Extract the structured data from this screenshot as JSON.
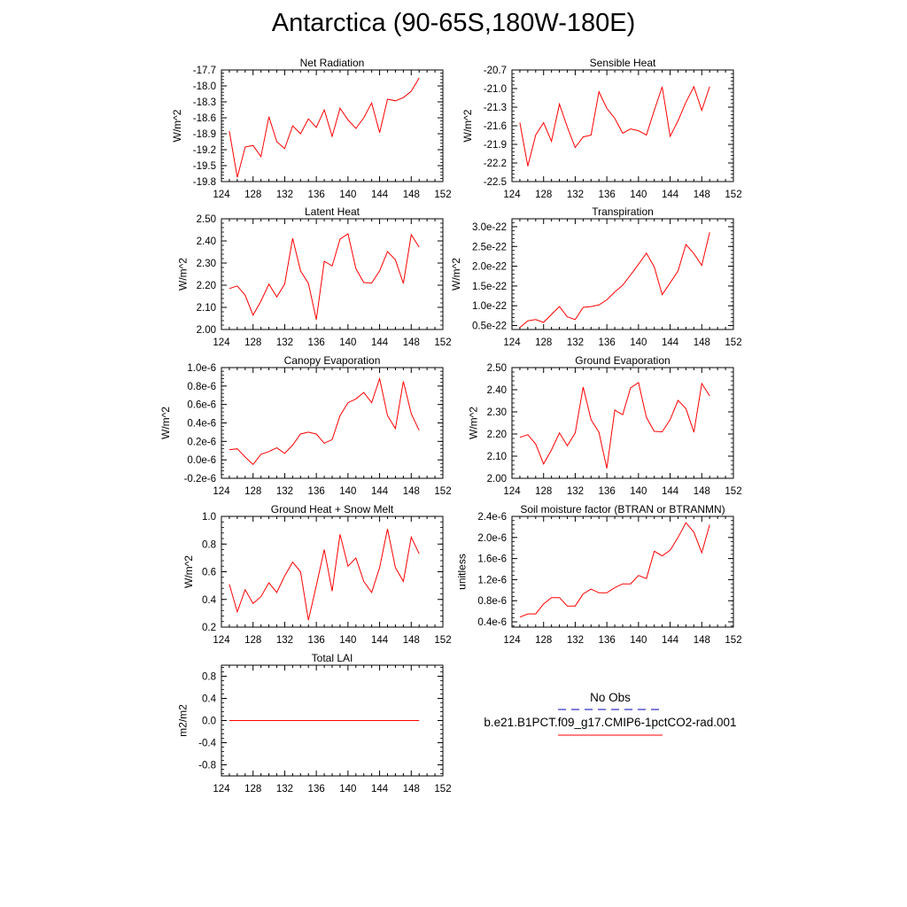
{
  "title": "Antarctica (90-65S,180W-180E)",
  "legend": {
    "entries": [
      {
        "label": "No Obs",
        "color": "#3333cc",
        "dash": true
      },
      {
        "label": "b.e21.B1PCT.f09_g17.CMIP6-1pctCO2-rad.001",
        "color": "#ff0000",
        "dash": false
      }
    ]
  },
  "chart_data": [
    {
      "type": "line",
      "title": "Net Radiation",
      "ylabel": "W/m^2",
      "xlim": [
        124,
        152
      ],
      "xticks": [
        "124",
        "128",
        "132",
        "136",
        "140",
        "144",
        "148",
        "152"
      ],
      "ylim": [
        -19.8,
        -17.7
      ],
      "yticks": [
        -17.7,
        -18.0,
        -18.3,
        -18.6,
        -18.9,
        -19.2,
        -19.5,
        -19.8
      ],
      "yticklabels": [
        "-17.7",
        "-18.0",
        "-18.3",
        "-18.6",
        "-18.9",
        "-19.2",
        "-19.5",
        "-19.8"
      ],
      "series": [
        {
          "color": "#ff0000",
          "x": [
            125,
            126,
            127,
            128,
            129,
            130,
            131,
            132,
            133,
            134,
            135,
            136,
            137,
            138,
            139,
            140,
            141,
            142,
            143,
            144,
            145,
            146,
            147,
            148,
            149
          ],
          "y": [
            -18.85,
            -19.72,
            -19.15,
            -19.12,
            -19.33,
            -18.58,
            -19.05,
            -19.18,
            -18.75,
            -18.9,
            -18.62,
            -18.78,
            -18.45,
            -18.95,
            -18.42,
            -18.64,
            -18.8,
            -18.6,
            -18.32,
            -18.88,
            -18.25,
            -18.28,
            -18.22,
            -18.1,
            -17.85
          ]
        }
      ]
    },
    {
      "type": "line",
      "title": "Sensible Heat",
      "ylabel": "W/m^2",
      "xlim": [
        124,
        152
      ],
      "xticks": [
        "124",
        "128",
        "132",
        "136",
        "140",
        "144",
        "148",
        "152"
      ],
      "ylim": [
        -22.5,
        -20.7
      ],
      "yticks": [
        -20.7,
        -21.0,
        -21.3,
        -21.6,
        -21.9,
        -22.2,
        -22.5
      ],
      "yticklabels": [
        "-20.7",
        "-21.0",
        "-21.3",
        "-21.6",
        "-21.9",
        "-22.2",
        "-22.5"
      ],
      "series": [
        {
          "color": "#ff0000",
          "x": [
            125,
            126,
            127,
            128,
            129,
            130,
            131,
            132,
            133,
            134,
            135,
            136,
            137,
            138,
            139,
            140,
            141,
            142,
            143,
            144,
            145,
            146,
            147,
            148,
            149
          ],
          "y": [
            -21.55,
            -22.25,
            -21.75,
            -21.55,
            -21.85,
            -21.25,
            -21.62,
            -21.95,
            -21.78,
            -21.75,
            -21.05,
            -21.32,
            -21.48,
            -21.72,
            -21.65,
            -21.68,
            -21.75,
            -21.35,
            -20.97,
            -21.77,
            -21.52,
            -21.22,
            -20.97,
            -21.35,
            -20.97
          ]
        }
      ]
    },
    {
      "type": "line",
      "title": "Latent Heat",
      "ylabel": "W/m^2",
      "xlim": [
        124,
        152
      ],
      "xticks": [
        "124",
        "128",
        "132",
        "136",
        "140",
        "144",
        "148",
        "152"
      ],
      "ylim": [
        2.0,
        2.5
      ],
      "yticks": [
        2.0,
        2.1,
        2.2,
        2.3,
        2.4,
        2.5
      ],
      "yticklabels": [
        "2.00",
        "2.10",
        "2.20",
        "2.30",
        "2.40",
        "2.50"
      ],
      "series": [
        {
          "color": "#ff0000",
          "x": [
            125,
            126,
            127,
            128,
            129,
            130,
            131,
            132,
            133,
            134,
            135,
            136,
            137,
            138,
            139,
            140,
            141,
            142,
            143,
            144,
            145,
            146,
            147,
            148,
            149
          ],
          "y": [
            2.185,
            2.197,
            2.155,
            2.065,
            2.128,
            2.205,
            2.147,
            2.205,
            2.412,
            2.265,
            2.208,
            2.045,
            2.308,
            2.287,
            2.408,
            2.432,
            2.275,
            2.212,
            2.21,
            2.265,
            2.352,
            2.315,
            2.208,
            2.428,
            2.372
          ]
        }
      ]
    },
    {
      "type": "line",
      "title": "Transpiration",
      "ylabel": "W/m^2",
      "xlim": [
        124,
        152
      ],
      "xticks": [
        "124",
        "128",
        "132",
        "136",
        "140",
        "144",
        "148",
        "152"
      ],
      "ylim": [
        0.4,
        3.2
      ],
      "yticks": [
        0.5,
        1.0,
        1.5,
        2.0,
        2.5,
        3.0
      ],
      "yticklabels": [
        "0.5e-22",
        "1.0e-22",
        "1.5e-22",
        "2.0e-22",
        "2.5e-22",
        "3.0e-22"
      ],
      "series": [
        {
          "color": "#ff0000",
          "x": [
            125,
            126,
            127,
            128,
            129,
            130,
            131,
            132,
            133,
            134,
            135,
            136,
            137,
            138,
            139,
            140,
            141,
            142,
            143,
            144,
            145,
            146,
            147,
            148,
            149
          ],
          "y": [
            0.45,
            0.62,
            0.65,
            0.58,
            0.78,
            0.98,
            0.72,
            0.65,
            0.96,
            0.98,
            1.02,
            1.15,
            1.35,
            1.52,
            1.78,
            2.05,
            2.33,
            1.98,
            1.28,
            1.58,
            1.88,
            2.55,
            2.32,
            2.02,
            2.86
          ]
        }
      ]
    },
    {
      "type": "line",
      "title": "Canopy Evaporation",
      "ylabel": "W/m^2",
      "xlim": [
        124,
        152
      ],
      "xticks": [
        "124",
        "128",
        "132",
        "136",
        "140",
        "144",
        "148",
        "152"
      ],
      "ylim": [
        -0.2,
        1.0
      ],
      "yticks": [
        1.0,
        0.8,
        0.6,
        0.4,
        0.2,
        0.0,
        -0.2
      ],
      "yticklabels": [
        "1.0e-6",
        "0.8e-6",
        "0.6e-6",
        "0.4e-6",
        "0.2e-6",
        "0.0e-6",
        "-0.2e-6"
      ],
      "series": [
        {
          "color": "#ff0000",
          "x": [
            125,
            126,
            127,
            128,
            129,
            130,
            131,
            132,
            133,
            134,
            135,
            136,
            137,
            138,
            139,
            140,
            141,
            142,
            143,
            144,
            145,
            146,
            147,
            148,
            149
          ],
          "y": [
            0.11,
            0.12,
            0.03,
            -0.05,
            0.06,
            0.09,
            0.13,
            0.07,
            0.16,
            0.28,
            0.3,
            0.28,
            0.18,
            0.22,
            0.48,
            0.62,
            0.66,
            0.73,
            0.62,
            0.88,
            0.48,
            0.34,
            0.85,
            0.5,
            0.32
          ]
        }
      ]
    },
    {
      "type": "line",
      "title": "Ground Evaporation",
      "ylabel": "W/m^2",
      "xlim": [
        124,
        152
      ],
      "xticks": [
        "124",
        "128",
        "132",
        "136",
        "140",
        "144",
        "148",
        "152"
      ],
      "ylim": [
        2.0,
        2.5
      ],
      "yticks": [
        2.0,
        2.1,
        2.2,
        2.3,
        2.4,
        2.5
      ],
      "yticklabels": [
        "2.00",
        "2.10",
        "2.20",
        "2.30",
        "2.40",
        "2.50"
      ],
      "series": [
        {
          "color": "#ff0000",
          "x": [
            125,
            126,
            127,
            128,
            129,
            130,
            131,
            132,
            133,
            134,
            135,
            136,
            137,
            138,
            139,
            140,
            141,
            142,
            143,
            144,
            145,
            146,
            147,
            148,
            149
          ],
          "y": [
            2.185,
            2.197,
            2.155,
            2.065,
            2.128,
            2.205,
            2.147,
            2.205,
            2.412,
            2.265,
            2.208,
            2.045,
            2.308,
            2.287,
            2.408,
            2.432,
            2.275,
            2.212,
            2.21,
            2.265,
            2.352,
            2.315,
            2.208,
            2.428,
            2.372
          ]
        }
      ]
    },
    {
      "type": "line",
      "title": "Ground Heat + Snow Melt",
      "ylabel": "W/m^2",
      "xlim": [
        124,
        152
      ],
      "xticks": [
        "124",
        "128",
        "132",
        "136",
        "140",
        "144",
        "148",
        "152"
      ],
      "ylim": [
        0.2,
        1.0
      ],
      "yticks": [
        0.2,
        0.4,
        0.6,
        0.8,
        1.0
      ],
      "yticklabels": [
        "0.2",
        "0.4",
        "0.6",
        "0.8",
        "1.0"
      ],
      "series": [
        {
          "color": "#ff0000",
          "x": [
            125,
            126,
            127,
            128,
            129,
            130,
            131,
            132,
            133,
            134,
            135,
            136,
            137,
            138,
            139,
            140,
            141,
            142,
            143,
            144,
            145,
            146,
            147,
            148,
            149
          ],
          "y": [
            0.51,
            0.31,
            0.47,
            0.37,
            0.42,
            0.52,
            0.45,
            0.57,
            0.67,
            0.6,
            0.25,
            0.5,
            0.76,
            0.46,
            0.87,
            0.64,
            0.7,
            0.53,
            0.45,
            0.63,
            0.91,
            0.63,
            0.53,
            0.85,
            0.73
          ]
        }
      ]
    },
    {
      "type": "line",
      "title": "Soil moisture factor (BTRAN or BTRANMN)",
      "ylabel": "unitless",
      "xlim": [
        124,
        152
      ],
      "xticks": [
        "124",
        "128",
        "132",
        "136",
        "140",
        "144",
        "148",
        "152"
      ],
      "ylim": [
        0.3,
        2.4
      ],
      "yticks": [
        0.4,
        0.8,
        1.2,
        1.6,
        2.0,
        2.4
      ],
      "yticklabels": [
        "0.4e-6",
        "0.8e-6",
        "1.2e-6",
        "1.6e-6",
        "2.0e-6",
        "2.4e-6"
      ],
      "series": [
        {
          "color": "#ff0000",
          "x": [
            125,
            126,
            127,
            128,
            129,
            130,
            131,
            132,
            133,
            134,
            135,
            136,
            137,
            138,
            139,
            140,
            141,
            142,
            143,
            144,
            145,
            146,
            147,
            148,
            149
          ],
          "y": [
            0.49,
            0.55,
            0.55,
            0.74,
            0.86,
            0.86,
            0.7,
            0.7,
            0.93,
            1.02,
            0.95,
            0.95,
            1.05,
            1.12,
            1.12,
            1.28,
            1.22,
            1.74,
            1.65,
            1.76,
            2.0,
            2.28,
            2.1,
            1.71,
            2.24
          ]
        }
      ]
    },
    {
      "type": "line",
      "title": "Total LAI",
      "ylabel": "m2/m2",
      "xlim": [
        124,
        152
      ],
      "xticks": [
        "124",
        "128",
        "132",
        "136",
        "140",
        "144",
        "148",
        "152"
      ],
      "ylim": [
        -1.0,
        1.0
      ],
      "yticks": [
        0.8,
        0.4,
        0.0,
        -0.4,
        -0.8
      ],
      "yticklabels": [
        "0.8",
        "0.4",
        "0.0",
        "-0.4",
        "-0.8"
      ],
      "series": [
        {
          "color": "#ff0000",
          "x": [
            125,
            126,
            127,
            128,
            129,
            130,
            131,
            132,
            133,
            134,
            135,
            136,
            137,
            138,
            139,
            140,
            141,
            142,
            143,
            144,
            145,
            146,
            147,
            148,
            149
          ],
          "y": [
            0,
            0,
            0,
            0,
            0,
            0,
            0,
            0,
            0,
            0,
            0,
            0,
            0,
            0,
            0,
            0,
            0,
            0,
            0,
            0,
            0,
            0,
            0,
            0,
            0
          ]
        }
      ]
    }
  ]
}
